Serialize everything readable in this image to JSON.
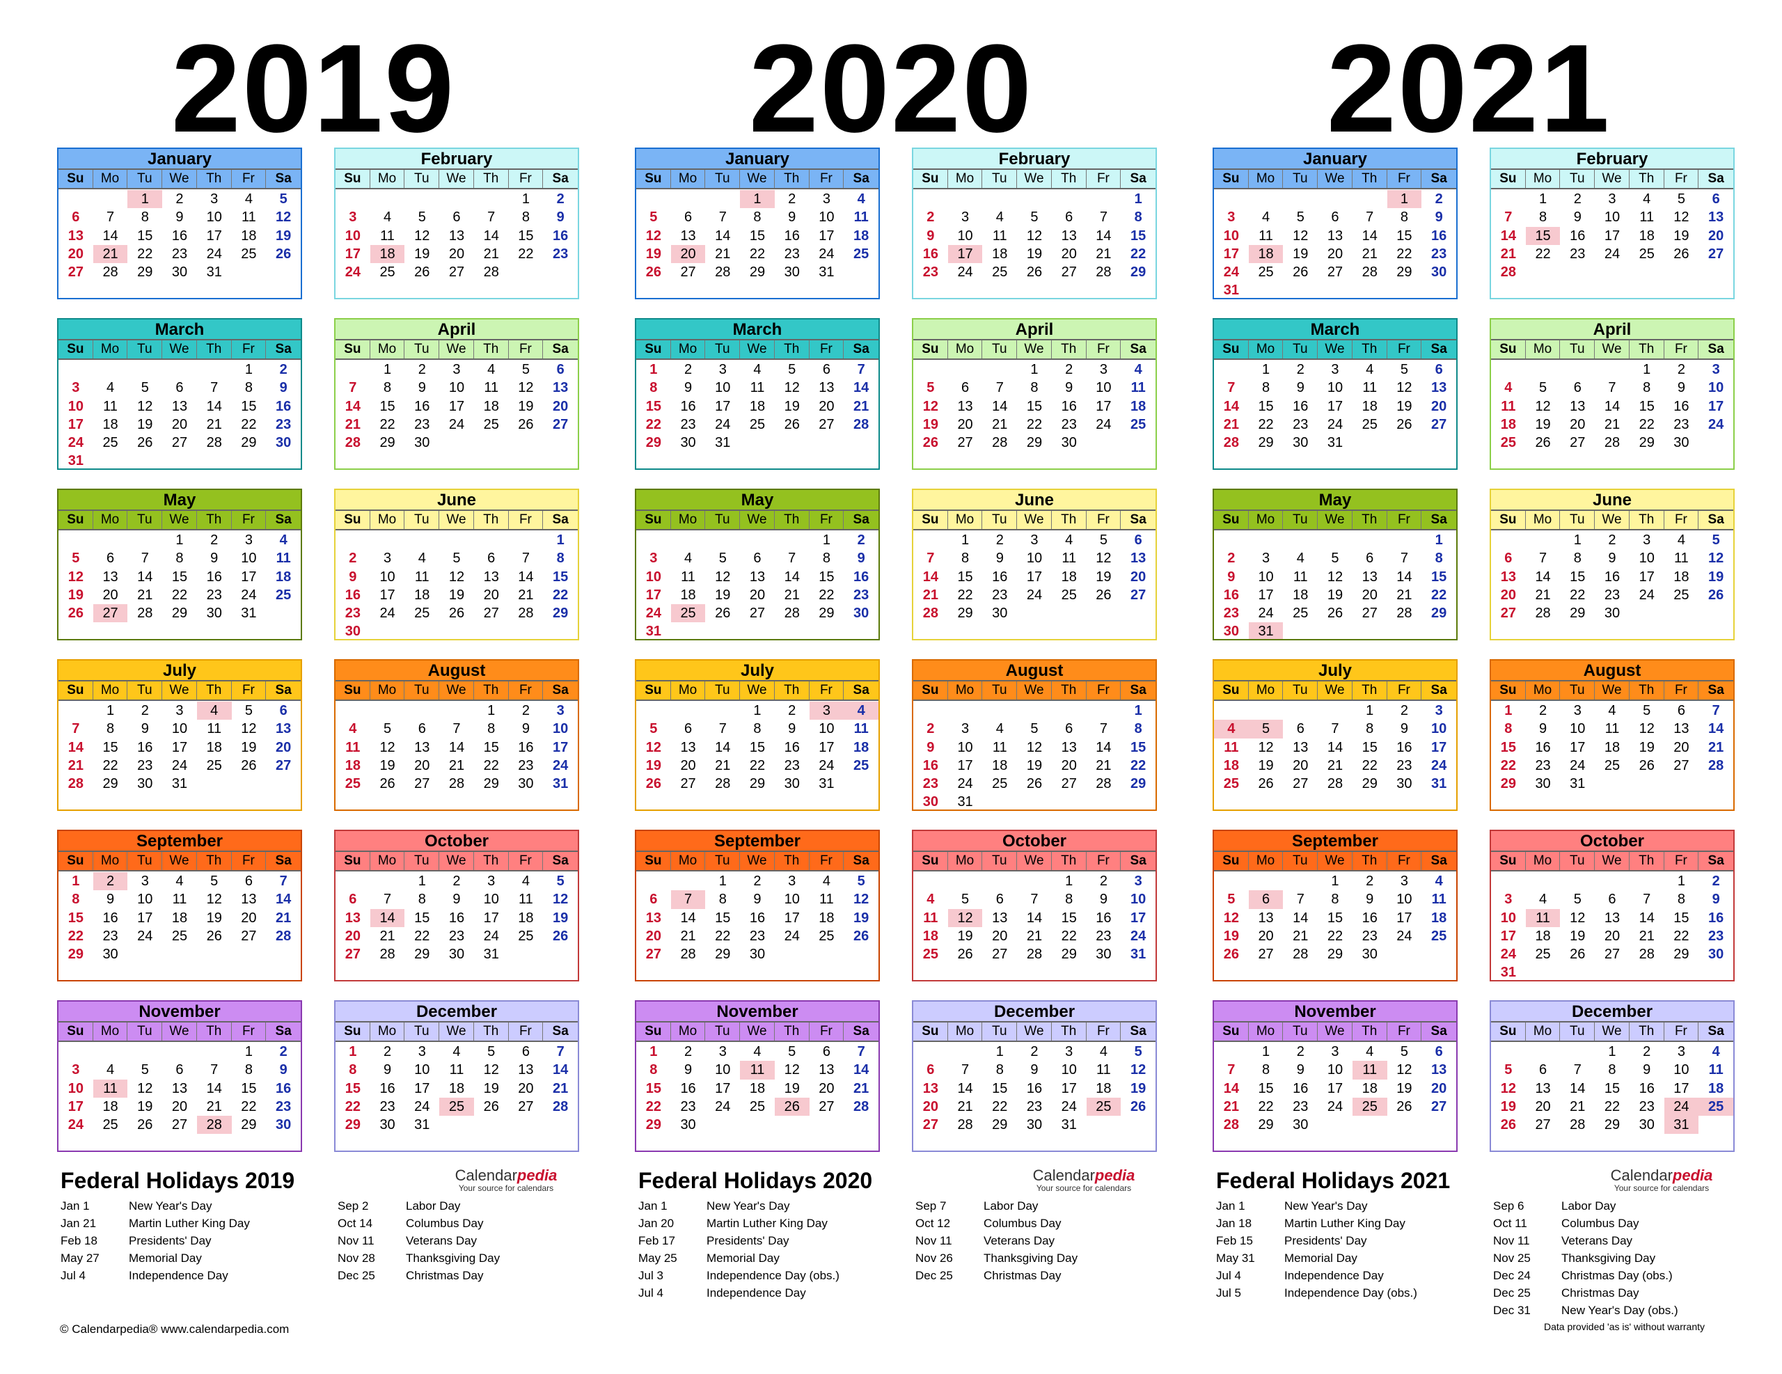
{
  "years": [
    {
      "year": "2019",
      "title": "Federal Holidays 2019",
      "holidays_left": [
        [
          "Jan 1",
          "New Year's Day"
        ],
        [
          "Jan 21",
          "Martin Luther King Day"
        ],
        [
          "Feb 18",
          "Presidents' Day"
        ],
        [
          "May 27",
          "Memorial Day"
        ],
        [
          "Jul 4",
          "Independence Day"
        ]
      ],
      "holidays_right": [
        [
          "Sep 2",
          "Labor Day"
        ],
        [
          "Oct 14",
          "Columbus Day"
        ],
        [
          "Nov 11",
          "Veterans Day"
        ],
        [
          "Nov 28",
          "Thanksgiving Day"
        ],
        [
          "Dec 25",
          "Christmas Day"
        ]
      ]
    },
    {
      "year": "2020",
      "title": "Federal Holidays 2020",
      "holidays_left": [
        [
          "Jan 1",
          "New Year's Day"
        ],
        [
          "Jan 20",
          "Martin Luther King Day"
        ],
        [
          "Feb 17",
          "Presidents' Day"
        ],
        [
          "May 25",
          "Memorial Day"
        ],
        [
          "Jul 3",
          "Independence Day (obs.)"
        ],
        [
          "Jul 4",
          "Independence Day"
        ]
      ],
      "holidays_right": [
        [
          "Sep 7",
          "Labor Day"
        ],
        [
          "Oct 12",
          "Columbus Day"
        ],
        [
          "Nov 11",
          "Veterans Day"
        ],
        [
          "Nov 26",
          "Thanksgiving Day"
        ],
        [
          "Dec 25",
          "Christmas Day"
        ]
      ]
    },
    {
      "year": "2021",
      "title": "Federal Holidays 2021",
      "holidays_left": [
        [
          "Jan 1",
          "New Year's Day"
        ],
        [
          "Jan 18",
          "Martin Luther King Day"
        ],
        [
          "Feb 15",
          "Presidents' Day"
        ],
        [
          "May 31",
          "Memorial Day"
        ],
        [
          "Jul 4",
          "Independence Day"
        ],
        [
          "Jul 5",
          "Independence Day (obs.)"
        ]
      ],
      "holidays_right": [
        [
          "Sep 6",
          "Labor Day"
        ],
        [
          "Oct 11",
          "Columbus Day"
        ],
        [
          "Nov 11",
          "Veterans Day"
        ],
        [
          "Nov 25",
          "Thanksgiving Day"
        ],
        [
          "Dec 24",
          "Christmas Day (obs.)"
        ],
        [
          "Dec 25",
          "Christmas Day"
        ],
        [
          "Dec 31",
          "New Year's Day (obs.)"
        ]
      ]
    }
  ],
  "months": [
    {
      "name": "January",
      "color": "#7ab4f5"
    },
    {
      "name": "February",
      "color": "#ccf7f7"
    },
    {
      "name": "March",
      "color": "#33c7c7"
    },
    {
      "name": "April",
      "color": "#ccf5b3"
    },
    {
      "name": "May",
      "color": "#94c11f"
    },
    {
      "name": "June",
      "color": "#fff59e"
    },
    {
      "name": "July",
      "color": "#ffc61a"
    },
    {
      "name": "August",
      "color": "#ff8c1a"
    },
    {
      "name": "September",
      "color": "#ff6a1a"
    },
    {
      "name": "October",
      "color": "#ff8080"
    },
    {
      "name": "November",
      "color": "#cc8cf2"
    },
    {
      "name": "December",
      "color": "#ccccff"
    }
  ],
  "border_colors": [
    "#1a6fd1",
    "#7ad6e0",
    "#0e8a8a",
    "#8ccf4a",
    "#5c7a0a",
    "#e6d23a",
    "#e6a000",
    "#d96a00",
    "#c94400",
    "#c23a3a",
    "#8a3ab0",
    "#8a8ad6"
  ],
  "weekdays": [
    "Su",
    "Mo",
    "Tu",
    "We",
    "Th",
    "Fr",
    "Sa"
  ],
  "brand": {
    "name": "Calendar",
    "name_accent": "pedia",
    "tagline": "Your source for calendars"
  },
  "footer": {
    "copyright": "© Calendarpedia®   www.calendarpedia.com",
    "disclaimer": "Data provided 'as is' without warranty"
  },
  "hol_dates": {
    "2019": [
      "1-1",
      "1-21",
      "2-18",
      "5-27",
      "7-4",
      "9-2",
      "10-14",
      "11-11",
      "11-28",
      "12-25"
    ],
    "2020": [
      "1-1",
      "1-20",
      "2-17",
      "5-25",
      "7-3",
      "7-4",
      "9-7",
      "10-12",
      "11-11",
      "11-26",
      "12-25"
    ],
    "2021": [
      "1-1",
      "1-18",
      "2-15",
      "5-31",
      "7-4",
      "7-5",
      "9-6",
      "10-11",
      "11-11",
      "11-25",
      "12-24",
      "12-25",
      "12-31"
    ]
  }
}
